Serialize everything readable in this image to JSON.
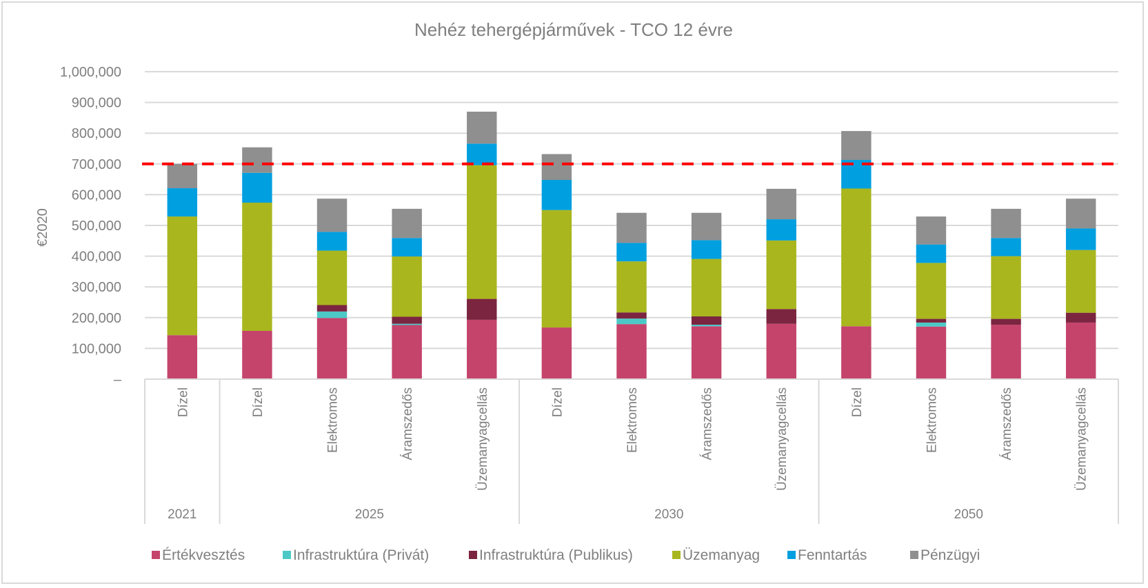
{
  "chart_data": {
    "type": "bar",
    "stacked": true,
    "title": "Nehéz tehergépjárművek - TCO 12 évre",
    "ylabel": "€2020",
    "xlabel": "",
    "ylim": [
      0,
      1000000
    ],
    "yticks": [
      0,
      100000,
      200000,
      300000,
      400000,
      500000,
      600000,
      700000,
      800000,
      900000,
      1000000
    ],
    "ytick_labels": [
      "–",
      "100,000",
      "200,000",
      "300,000",
      "400,000",
      "500,000",
      "600,000",
      "700,000",
      "800,000",
      "900,000",
      "1,000,000"
    ],
    "grid": true,
    "legend_position": "bottom",
    "reference_line": {
      "value": 700000,
      "color": "#ff0000",
      "style": "dashed"
    },
    "groups": [
      {
        "label": "2021",
        "categories": [
          "Dízel"
        ]
      },
      {
        "label": "2025",
        "categories": [
          "Dízel",
          "Elektromos",
          "Áramszedős",
          "Üzemanyagcellás"
        ]
      },
      {
        "label": "2030",
        "categories": [
          "Dízel",
          "Elektromos",
          "Áramszedős",
          "Üzemanyagcellás"
        ]
      },
      {
        "label": "2050",
        "categories": [
          "Dízel",
          "Elektromos",
          "Áramszedős",
          "Üzemanyagcellás"
        ]
      }
    ],
    "categories": [
      "2021 Dízel",
      "2025 Dízel",
      "2025 Elektromos",
      "2025 Áramszedős",
      "2025 Üzemanyagcellás",
      "2030 Dízel",
      "2030 Elektromos",
      "2030 Áramszedős",
      "2030 Üzemanyagcellás",
      "2050 Dízel",
      "2050 Elektromos",
      "2050 Áramszedős",
      "2050 Üzemanyagcellás"
    ],
    "series": [
      {
        "name": "Értékvesztés",
        "color": "#c4446c",
        "values": [
          143000,
          157000,
          199000,
          176000,
          193000,
          168000,
          179000,
          172000,
          180000,
          172000,
          171000,
          177000,
          184000
        ]
      },
      {
        "name": "Infrastruktúra (Privát)",
        "color": "#4cc9c6",
        "values": [
          0,
          0,
          21000,
          4000,
          0,
          0,
          18000,
          5000,
          0,
          0,
          13000,
          0,
          0
        ]
      },
      {
        "name": "Infrastruktúra (Publikus)",
        "color": "#7b2540",
        "values": [
          0,
          0,
          21000,
          23000,
          68000,
          0,
          20000,
          27000,
          48000,
          0,
          12000,
          19000,
          32000
        ]
      },
      {
        "name": "Üzemanyag",
        "color": "#a9b61e",
        "values": [
          386000,
          417000,
          177000,
          196000,
          435000,
          382000,
          166000,
          187000,
          223000,
          448000,
          182000,
          204000,
          204000
        ]
      },
      {
        "name": "Fenntartás",
        "color": "#009fe0",
        "values": [
          92000,
          97000,
          61000,
          60000,
          70000,
          98000,
          60000,
          61000,
          69000,
          93000,
          60000,
          59000,
          70000
        ]
      },
      {
        "name": "Pénzügyi",
        "color": "#8f8f8f",
        "values": [
          79000,
          83000,
          108000,
          95000,
          104000,
          84000,
          98000,
          89000,
          99000,
          94000,
          91000,
          95000,
          97000
        ]
      }
    ]
  }
}
